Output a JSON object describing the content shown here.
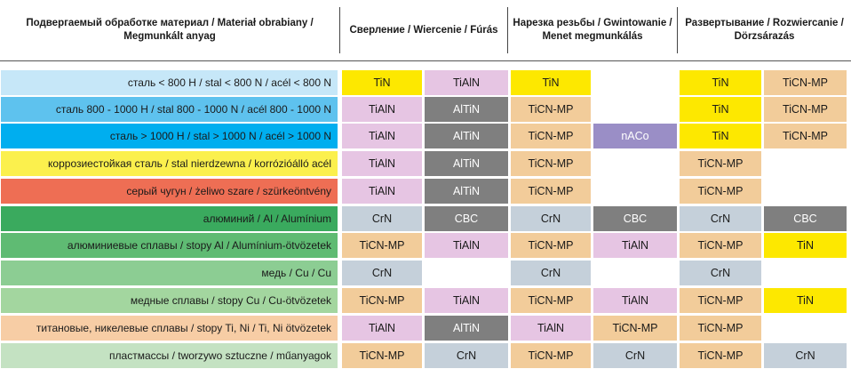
{
  "headers": [
    "Подвергаемый обработке материал / Materiał obrabiany /\nMegmunkált anyag",
    "Сверление / Wiercenie / Fúrás",
    "Нарезка резьбы / Gwintowanie /\nMenet megmunkálás",
    "Развертывание / Rozwiercanie /\nDörzsárazás"
  ],
  "colors": {
    "TiN": "#fde800",
    "TiAlN": "#e6c5e3",
    "AlTiN": "#7f7f7f",
    "TiCN-MP": "#f2cc9a",
    "nACo": "#9a8ec6",
    "CrN": "#c5d0da",
    "CBC": "#7f7f7f",
    "empty": "#ffffff"
  },
  "rows": [
    {
      "material": "сталь < 800 Н / stal < 800 N / acél < 800 N",
      "color": "#c6e7f8",
      "coatings": [
        "TiN",
        "TiAlN",
        "TiN",
        "",
        "TiN",
        "TiCN-MP"
      ]
    },
    {
      "material": "сталь 800 - 1000 Н / stal 800 - 1000 N / acél 800 - 1000 N",
      "color": "#5ec2ee",
      "coatings": [
        "TiAlN",
        "AlTiN",
        "TiCN-MP",
        "",
        "TiN",
        "TiCN-MP"
      ]
    },
    {
      "material": "сталь > 1000 Н / stal > 1000 N / acél > 1000 N",
      "color": "#00aeef",
      "coatings": [
        "TiAlN",
        "AlTiN",
        "TiCN-MP",
        "nACo",
        "TiN",
        "TiCN-MP"
      ]
    },
    {
      "material": "коррозиестойкая сталь / stal nierdzewna / korrózióálló acél",
      "color": "#fbf04d",
      "coatings": [
        "TiAlN",
        "AlTiN",
        "TiCN-MP",
        "",
        "TiCN-MP",
        ""
      ]
    },
    {
      "material": "серый чугун / żeliwo szare / szürkeöntvény",
      "color": "#ee6e54",
      "coatings": [
        "TiAlN",
        "AlTiN",
        "TiCN-MP",
        "",
        "TiCN-MP",
        ""
      ]
    },
    {
      "material": "алюминий / Al / Alumínium",
      "color": "#3aaa5e",
      "coatings": [
        "CrN",
        "CBC",
        "CrN",
        "CBC",
        "CrN",
        "CBC"
      ]
    },
    {
      "material": "алюминиевые сплавы / stopy Al / Alumínium-ötvözetek",
      "color": "#5fbb73",
      "coatings": [
        "TiCN-MP",
        "TiAlN",
        "TiCN-MP",
        "TiAlN",
        "TiCN-MP",
        "TiN"
      ]
    },
    {
      "material": "медь / Cu / Cu",
      "color": "#8ccd93",
      "coatings": [
        "CrN",
        "",
        "CrN",
        "",
        "CrN",
        ""
      ]
    },
    {
      "material": "медные сплавы / stopy Cu / Cu-ötvözetek",
      "color": "#a3d69f",
      "coatings": [
        "TiCN-MP",
        "TiAlN",
        "TiCN-MP",
        "TiAlN",
        "TiCN-MP",
        "TiN"
      ]
    },
    {
      "material": "титановые, никелевые сплавы / stopy Ti, Ni / Ti, Ni ötvözetek",
      "color": "#f7cda5",
      "coatings": [
        "TiAlN",
        "AlTiN",
        "TiAlN",
        "TiCN-MP",
        "TiCN-MP",
        ""
      ]
    },
    {
      "material": "пластмассы / tworzywo sztuczne / műanyagok",
      "color": "#c4e2c2",
      "coatings": [
        "TiCN-MP",
        "CrN",
        "TiCN-MP",
        "CrN",
        "TiCN-MP",
        "CrN"
      ]
    }
  ]
}
